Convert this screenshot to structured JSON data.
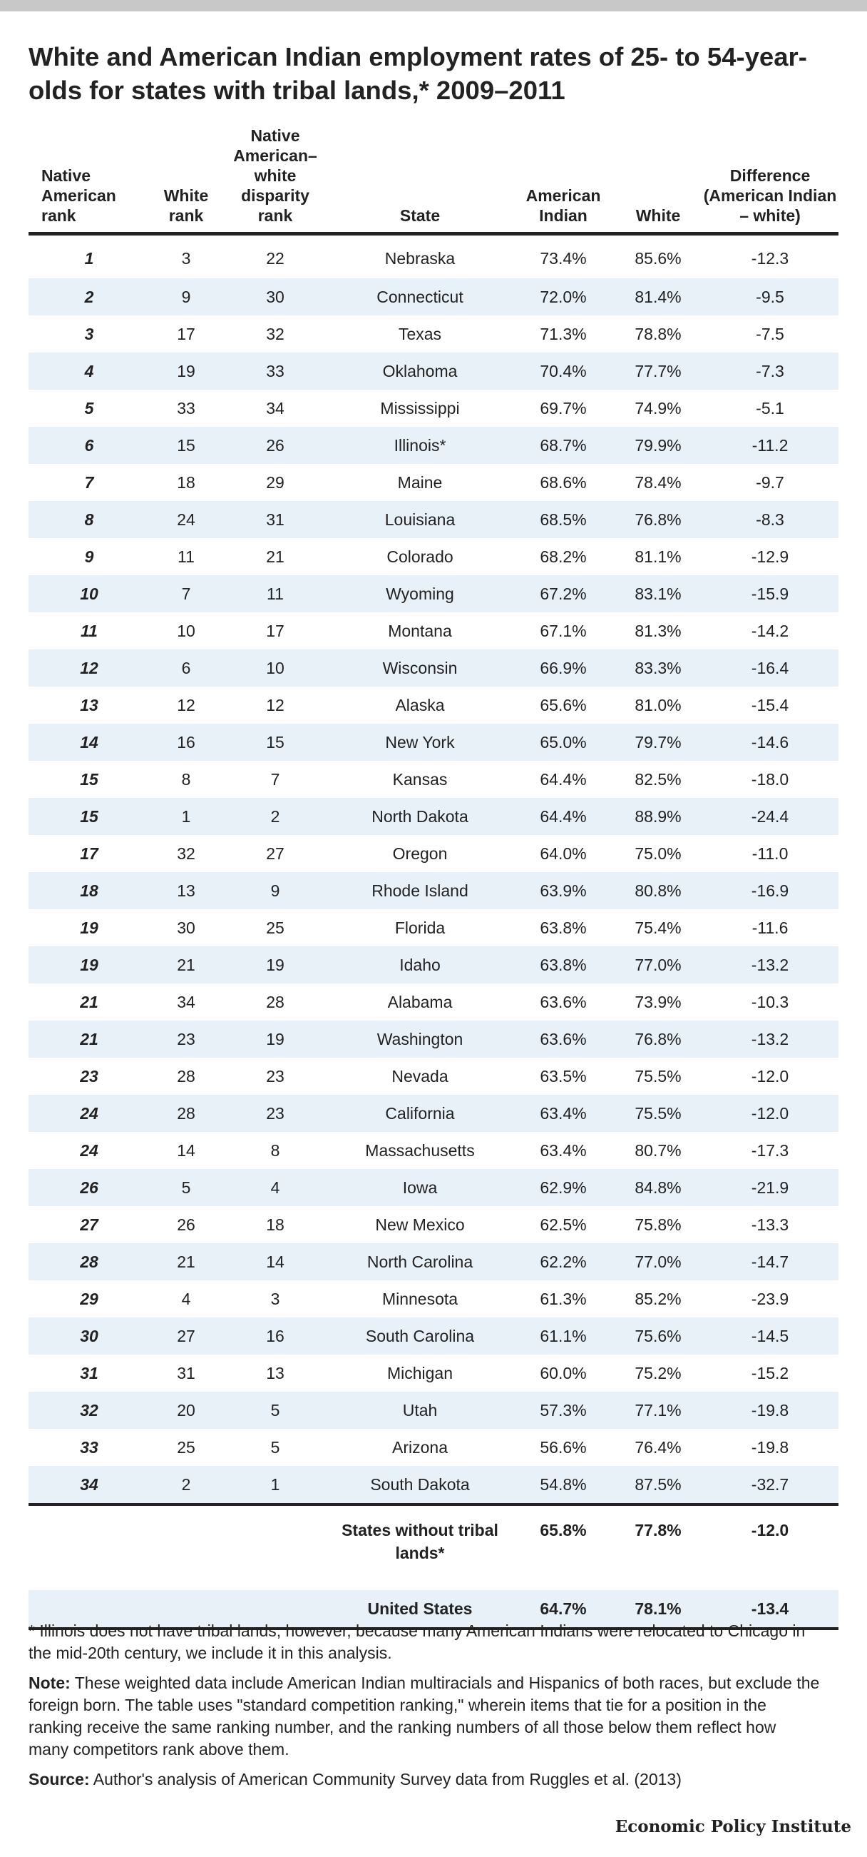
{
  "title": "White and American Indian employment rates of 25- to 54-year-olds for states with tribal lands,* 2009–2011",
  "columns": {
    "native_rank": "Native American rank",
    "white_rank": "White rank",
    "disparity_rank": "Native American–white disparity rank",
    "state": "State",
    "american_indian": "American Indian",
    "white": "White",
    "difference": "Difference (American Indian – white)"
  },
  "chart_data": {
    "type": "table",
    "title": "White and American Indian employment rates of 25- to 54-year-olds for states with tribal lands,* 2009–2011",
    "headers": [
      "Native American rank",
      "White rank",
      "Native American–white disparity rank",
      "State",
      "American Indian",
      "White",
      "Difference (American Indian – white)"
    ],
    "rows": [
      [
        "1",
        "3",
        "22",
        "Nebraska",
        "73.4%",
        "85.6%",
        "-12.3"
      ],
      [
        "2",
        "9",
        "30",
        "Connecticut",
        "72.0%",
        "81.4%",
        "-9.5"
      ],
      [
        "3",
        "17",
        "32",
        "Texas",
        "71.3%",
        "78.8%",
        "-7.5"
      ],
      [
        "4",
        "19",
        "33",
        "Oklahoma",
        "70.4%",
        "77.7%",
        "-7.3"
      ],
      [
        "5",
        "33",
        "34",
        "Mississippi",
        "69.7%",
        "74.9%",
        "-5.1"
      ],
      [
        "6",
        "15",
        "26",
        "Illinois*",
        "68.7%",
        "79.9%",
        "-11.2"
      ],
      [
        "7",
        "18",
        "29",
        "Maine",
        "68.6%",
        "78.4%",
        "-9.7"
      ],
      [
        "8",
        "24",
        "31",
        "Louisiana",
        "68.5%",
        "76.8%",
        "-8.3"
      ],
      [
        "9",
        "11",
        "21",
        "Colorado",
        "68.2%",
        "81.1%",
        "-12.9"
      ],
      [
        "10",
        "7",
        "11",
        "Wyoming",
        "67.2%",
        "83.1%",
        "-15.9"
      ],
      [
        "11",
        "10",
        "17",
        "Montana",
        "67.1%",
        "81.3%",
        "-14.2"
      ],
      [
        "12",
        "6",
        "10",
        "Wisconsin",
        "66.9%",
        "83.3%",
        "-16.4"
      ],
      [
        "13",
        "12",
        "12",
        "Alaska",
        "65.6%",
        "81.0%",
        "-15.4"
      ],
      [
        "14",
        "16",
        "15",
        "New York",
        "65.0%",
        "79.7%",
        "-14.6"
      ],
      [
        "15",
        "8",
        "7",
        "Kansas",
        "64.4%",
        "82.5%",
        "-18.0"
      ],
      [
        "15",
        "1",
        "2",
        "North Dakota",
        "64.4%",
        "88.9%",
        "-24.4"
      ],
      [
        "17",
        "32",
        "27",
        "Oregon",
        "64.0%",
        "75.0%",
        "-11.0"
      ],
      [
        "18",
        "13",
        "9",
        "Rhode Island",
        "63.9%",
        "80.8%",
        "-16.9"
      ],
      [
        "19",
        "30",
        "25",
        "Florida",
        "63.8%",
        "75.4%",
        "-11.6"
      ],
      [
        "19",
        "21",
        "19",
        "Idaho",
        "63.8%",
        "77.0%",
        "-13.2"
      ],
      [
        "21",
        "34",
        "28",
        "Alabama",
        "63.6%",
        "73.9%",
        "-10.3"
      ],
      [
        "21",
        "23",
        "19",
        "Washington",
        "63.6%",
        "76.8%",
        "-13.2"
      ],
      [
        "23",
        "28",
        "23",
        "Nevada",
        "63.5%",
        "75.5%",
        "-12.0"
      ],
      [
        "24",
        "28",
        "23",
        "California",
        "63.4%",
        "75.5%",
        "-12.0"
      ],
      [
        "24",
        "14",
        "8",
        "Massachusetts",
        "63.4%",
        "80.7%",
        "-17.3"
      ],
      [
        "26",
        "5",
        "4",
        "Iowa",
        "62.9%",
        "84.8%",
        "-21.9"
      ],
      [
        "27",
        "26",
        "18",
        "New Mexico",
        "62.5%",
        "75.8%",
        "-13.3"
      ],
      [
        "28",
        "21",
        "14",
        "North Carolina",
        "62.2%",
        "77.0%",
        "-14.7"
      ],
      [
        "29",
        "4",
        "3",
        "Minnesota",
        "61.3%",
        "85.2%",
        "-23.9"
      ],
      [
        "30",
        "27",
        "16",
        "South Carolina",
        "61.1%",
        "75.6%",
        "-14.5"
      ],
      [
        "31",
        "31",
        "13",
        "Michigan",
        "60.0%",
        "75.2%",
        "-15.2"
      ],
      [
        "32",
        "20",
        "5",
        "Utah",
        "57.3%",
        "77.1%",
        "-19.8"
      ],
      [
        "33",
        "25",
        "5",
        "Arizona",
        "56.6%",
        "76.4%",
        "-19.8"
      ],
      [
        "34",
        "2",
        "1",
        "South Dakota",
        "54.8%",
        "87.5%",
        "-32.7"
      ]
    ],
    "summary_rows": [
      [
        "",
        "",
        "",
        "States without tribal lands*",
        "65.8%",
        "77.8%",
        "-12.0"
      ],
      [
        "",
        "",
        "",
        "United States",
        "64.7%",
        "78.1%",
        "-13.4"
      ]
    ]
  },
  "colors": {
    "stripe": "#e8f0f8",
    "rule": "#222222",
    "top_bar": "#c8c8c8"
  },
  "footnote": "* Illinois does not have tribal lands; however, because many American Indians were relocated to Chicago in the mid-20th century, we include it in this analysis.",
  "note": {
    "label": "Note:",
    "text": " These weighted data include American Indian multiracials and Hispanics of both races, but exclude the foreign born. The table uses \"standard competition ranking,\" wherein items that tie for a position in the ranking receive the same ranking number, and the ranking numbers of all those below them reflect how many competitors rank above them."
  },
  "source": {
    "label": "Source:",
    "text": " Author's analysis of American Community Survey data from Ruggles et al. (2013)"
  },
  "logo": "Economic Policy Institute"
}
